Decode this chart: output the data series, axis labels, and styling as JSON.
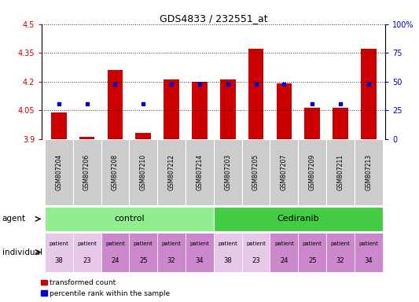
{
  "title": "GDS4833 / 232551_at",
  "samples": [
    "GSM807204",
    "GSM807206",
    "GSM807208",
    "GSM807210",
    "GSM807212",
    "GSM807214",
    "GSM807203",
    "GSM807205",
    "GSM807207",
    "GSM807209",
    "GSM807211",
    "GSM807213"
  ],
  "bar_values": [
    4.04,
    3.91,
    4.26,
    3.93,
    4.21,
    4.2,
    4.21,
    4.37,
    4.19,
    4.065,
    4.065,
    4.37
  ],
  "percentile_values": [
    4.085,
    4.082,
    4.185,
    4.082,
    4.185,
    4.185,
    4.185,
    4.185,
    4.185,
    4.082,
    4.082,
    4.185
  ],
  "bar_bottom": 3.9,
  "ymin": 3.9,
  "ymax": 4.5,
  "y2min": 0,
  "y2max": 100,
  "yticks": [
    3.9,
    4.05,
    4.2,
    4.35,
    4.5
  ],
  "y2ticks": [
    0,
    25,
    50,
    75,
    100
  ],
  "bar_color": "#CC0000",
  "dot_color": "#0000CC",
  "legend_items": [
    "transformed count",
    "percentile rank within the sample"
  ],
  "background_color": "#ffffff",
  "ylabel_left_color": "#CC0000",
  "ylabel_right_color": "#0000CC",
  "control_color": "#90EE90",
  "cediranib_color": "#44CC44",
  "patient_colors": [
    "#E8C8E8",
    "#E8C8E8",
    "#CC88CC",
    "#CC88CC",
    "#CC88CC",
    "#CC88CC",
    "#E8C8E8",
    "#E8C8E8",
    "#CC88CC",
    "#CC88CC",
    "#CC88CC",
    "#CC88CC"
  ],
  "patient_nums": [
    "38",
    "23",
    "24",
    "25",
    "32",
    "34",
    "38",
    "23",
    "24",
    "25",
    "32",
    "34"
  ],
  "sample_box_color": "#CCCCCC"
}
